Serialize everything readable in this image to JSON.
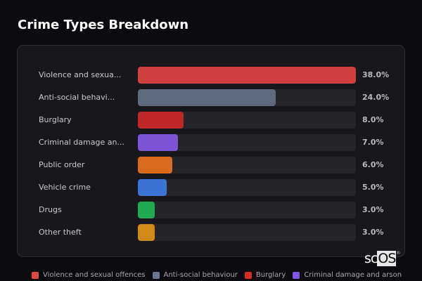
{
  "title": "Crime Types Breakdown",
  "rows": [
    {
      "label": "Violence and sexua...",
      "pct": "38.0%",
      "value": 38.0,
      "color": "#d04040"
    },
    {
      "label": "Anti-social behavi...",
      "pct": "24.0%",
      "value": 24.0,
      "color": "#5f6b7d"
    },
    {
      "label": "Burglary",
      "pct": "8.0%",
      "value": 8.0,
      "color": "#c02828"
    },
    {
      "label": "Criminal damage an...",
      "pct": "7.0%",
      "value": 7.0,
      "color": "#7b55d6"
    },
    {
      "label": "Public order",
      "pct": "6.0%",
      "value": 6.0,
      "color": "#d96a1e"
    },
    {
      "label": "Vehicle crime",
      "pct": "5.0%",
      "value": 5.0,
      "color": "#3b74d4"
    },
    {
      "label": "Drugs",
      "pct": "3.0%",
      "value": 3.0,
      "color": "#22a955"
    },
    {
      "label": "Other theft",
      "pct": "3.0%",
      "value": 3.0,
      "color": "#d28a16"
    }
  ],
  "legend": [
    {
      "label": "Violence and sexual offences",
      "color": "#e04848"
    },
    {
      "label": "Anti-social behaviour",
      "color": "#6b7890"
    },
    {
      "label": "Burglary",
      "color": "#d42a2a"
    },
    {
      "label": "Criminal damage and arson",
      "color": "#8055e8"
    }
  ],
  "watermark": {
    "sc": "sc",
    "os": "OS",
    "reg": "®"
  },
  "chart_data": {
    "type": "bar",
    "orientation": "horizontal",
    "title": "Crime Types Breakdown",
    "categories": [
      "Violence and sexual offences",
      "Anti-social behaviour",
      "Burglary",
      "Criminal damage and arson",
      "Public order",
      "Vehicle crime",
      "Drugs",
      "Other theft"
    ],
    "category_labels_displayed": [
      "Violence and sexua...",
      "Anti-social behavi...",
      "Burglary",
      "Criminal damage an...",
      "Public order",
      "Vehicle crime",
      "Drugs",
      "Other theft"
    ],
    "values": [
      38.0,
      24.0,
      8.0,
      7.0,
      6.0,
      5.0,
      3.0,
      3.0
    ],
    "value_labels": [
      "38.0%",
      "24.0%",
      "8.0%",
      "7.0%",
      "6.0%",
      "5.0%",
      "3.0%",
      "3.0%"
    ],
    "colors": [
      "#d04040",
      "#5f6b7d",
      "#c02828",
      "#7b55d6",
      "#d96a1e",
      "#3b74d4",
      "#22a955",
      "#d28a16"
    ],
    "xlabel": "",
    "ylabel": "",
    "scale_max": 38.0,
    "grid": false,
    "legend": {
      "position": "bottom",
      "entries_visible": [
        "Violence and sexual offences",
        "Anti-social behaviour",
        "Burglary",
        "Criminal damage and arson"
      ]
    }
  }
}
